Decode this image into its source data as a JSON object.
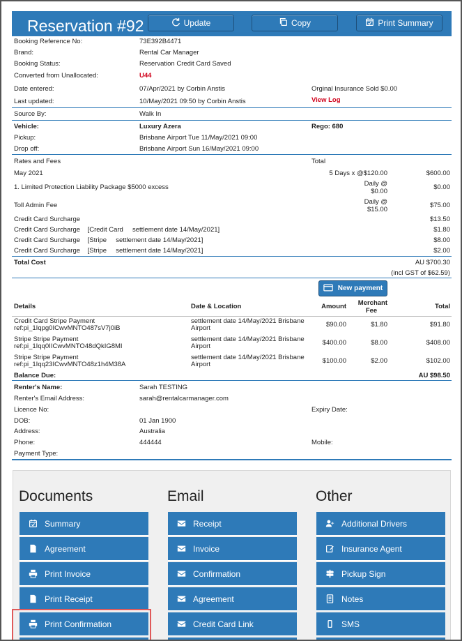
{
  "header": {
    "title": "Reservation #92",
    "update_label": "Update",
    "copy_label": "Copy",
    "print_summary_label": "Print Summary"
  },
  "booking": {
    "ref_label": "Booking Reference No:",
    "ref_value": "73E392B4471",
    "brand_label": "Brand:",
    "brand_value": "Rental Car Manager",
    "status_label": "Booking Status:",
    "status_value": "Reservation Credit Card Saved",
    "converted_label": "Converted from Unallocated:",
    "converted_value": "U44",
    "entered_label": "Date entered:",
    "entered_value": "07/Apr/2021 by Corbin Anstis",
    "insurance_text": "Orginal Insurance Sold $0.00",
    "updated_label": "Last updated:",
    "updated_value": "10/May/2021 09:50 by Corbin Anstis",
    "view_log": "View Log",
    "source_label": "Source By:",
    "source_value": "Walk In"
  },
  "vehicle": {
    "vehicle_label": "Vehicle:",
    "vehicle_value": "Luxury Azera",
    "rego_text": "Rego: 680",
    "pickup_label": "Pickup:",
    "pickup_value": "Brisbane Airport Tue 11/May/2021 09:00",
    "dropoff_label": "Drop off:",
    "dropoff_value": "Brisbane Airport Sun 16/May/2021 09:00"
  },
  "rates": {
    "heading": "Rates and Fees",
    "total_heading": "Total",
    "lines": [
      {
        "name": "May 2021",
        "qty": "5 Days x @$120.00",
        "total": "$600.00"
      },
      {
        "name": "1. Limited Protection Liability Package $5000 excess",
        "qty1": "Daily @",
        "qty2": "$0.00",
        "total": "$0.00"
      },
      {
        "name": "Toll Admin Fee",
        "qty1": "Daily @",
        "qty2": "$15.00",
        "total": "$75.00"
      },
      {
        "name": "Credit Card Surcharge",
        "total": "$13.50"
      },
      {
        "name": "Credit Card Surcharge    [Credit Card     settlement date 14/May/2021]",
        "total": "$1.80"
      },
      {
        "name": "Credit Card Surcharge    [Stripe     settlement date 14/May/2021]",
        "total": "$8.00"
      },
      {
        "name": "Credit Card Surcharge    [Stripe     settlement date 14/May/2021]",
        "total": "$2.00"
      }
    ],
    "total_cost_label": "Total Cost",
    "total_cost_value": "AU $700.30",
    "gst_text": "(incl GST of $62.59)"
  },
  "payments": {
    "new_payment_label": "New payment",
    "headers": {
      "details": "Details",
      "date_location": "Date & Location",
      "amount": "Amount",
      "merchant1": "Merchant",
      "merchant2": "Fee",
      "total": "Total"
    },
    "rows": [
      {
        "d1": "Credit Card Stripe Payment",
        "d2": "ref:pi_1Iqpg0ICwvMNTO487sV7j0iB",
        "l1": "settlement date 14/May/2021 Brisbane",
        "l2": "Airport",
        "amount": "$90.00",
        "fee": "$1.80",
        "total": "$91.80"
      },
      {
        "d1": "Stripe Stripe Payment",
        "d2": "ref:pi_1Iqq0IICwvMNTO48dQkIG8MI",
        "l1": "settlement date 14/May/2021 Brisbane",
        "l2": "Airport",
        "amount": "$400.00",
        "fee": "$8.00",
        "total": "$408.00"
      },
      {
        "d1": "Stripe Stripe Payment",
        "d2": "ref:pi_1Iqq23ICwvMNTO48z1h4M38A",
        "l1": "settlement date 14/May/2021 Brisbane",
        "l2": "Airport",
        "amount": "$100.00",
        "fee": "$2.00",
        "total": "$102.00"
      }
    ],
    "balance_label": "Balance Due:",
    "balance_value": "AU $98.50"
  },
  "renter": {
    "name_label": "Renter's Name:",
    "name_value": "Sarah TESTING",
    "email_label": "Renter's Email Address:",
    "email_value": "sarah@rentalcarmanager.com",
    "licence_label": "Licence No:",
    "expiry_label": "Expiry Date:",
    "dob_label": "DOB:",
    "dob_value": "01 Jan 1900",
    "address_label": "Address:",
    "address_value": "Australia",
    "phone_label": "Phone:",
    "phone_value": "444444",
    "mobile_label": "Mobile:",
    "payment_type_label": "Payment Type:"
  },
  "actions": {
    "documents_title": "Documents",
    "email_title": "Email",
    "other_title": "Other",
    "documents": [
      {
        "label": "Summary",
        "icon": "calendar-check-icon"
      },
      {
        "label": "Agreement",
        "icon": "file-icon"
      },
      {
        "label": "Print Invoice",
        "icon": "printer-icon"
      },
      {
        "label": "Print Receipt",
        "icon": "file-icon"
      },
      {
        "label": "Print Confirmation",
        "icon": "printer-icon"
      }
    ],
    "email": [
      {
        "label": "Receipt",
        "icon": "envelope-icon"
      },
      {
        "label": "Invoice",
        "icon": "envelope-icon"
      },
      {
        "label": "Confirmation",
        "icon": "envelope-icon"
      },
      {
        "label": "Agreement",
        "icon": "envelope-icon"
      },
      {
        "label": "Credit Card Link",
        "icon": "envelope-icon"
      }
    ],
    "other": [
      {
        "label": "Additional Drivers",
        "icon": "user-plus-icon"
      },
      {
        "label": "Insurance Agent",
        "icon": "edit-icon"
      },
      {
        "label": "Pickup Sign",
        "icon": "signpost-icon"
      },
      {
        "label": "Notes",
        "icon": "notes-icon"
      },
      {
        "label": "SMS",
        "icon": "mobile-icon"
      }
    ]
  },
  "colors": {
    "primary": "#2e7ab8",
    "link_red": "#d0021b",
    "highlight_border": "#e05a5a"
  }
}
